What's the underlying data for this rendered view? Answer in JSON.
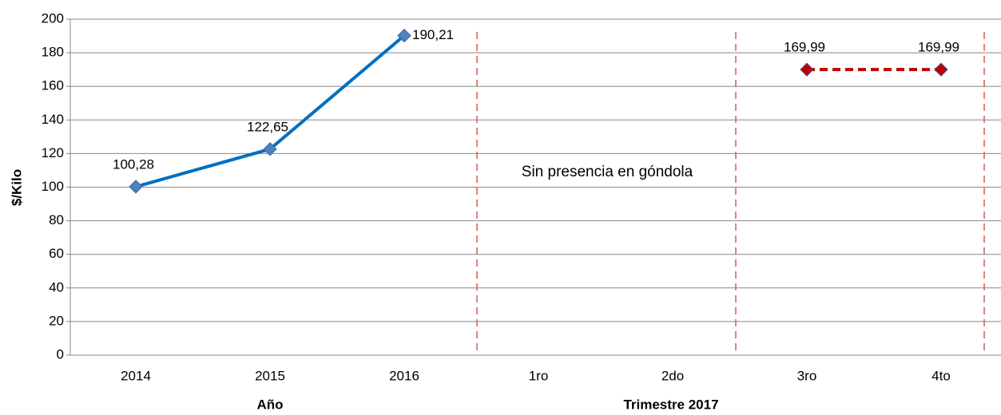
{
  "chart_data": {
    "type": "line",
    "y_label": "$/Kilo",
    "x_labels": [
      "Año",
      "Trimestre 2017"
    ],
    "annotation": "Sin presencia en góndola",
    "categories": [
      "2014",
      "2015",
      "2016",
      "1ro",
      "2do",
      "3ro",
      "4to"
    ],
    "series": [
      {
        "color": "#0070c0",
        "marker_color": "#4f81bd",
        "dashed": false,
        "values": [
          100.28,
          122.65,
          190.21,
          null,
          null,
          null,
          null
        ],
        "value_labels": [
          "100,28",
          "122,65",
          "190,21",
          null,
          null,
          null,
          null
        ]
      },
      {
        "color": "#c00000",
        "marker_color": "#c00000",
        "dashed": true,
        "values": [
          null,
          null,
          null,
          null,
          null,
          169.99,
          169.99
        ],
        "value_labels": [
          null,
          null,
          null,
          null,
          null,
          "169,99",
          "169,99"
        ]
      }
    ],
    "ylim": [
      0,
      200
    ],
    "yticks": [
      0,
      20,
      40,
      60,
      80,
      100,
      120,
      140,
      160,
      180,
      200
    ],
    "grid": true
  }
}
